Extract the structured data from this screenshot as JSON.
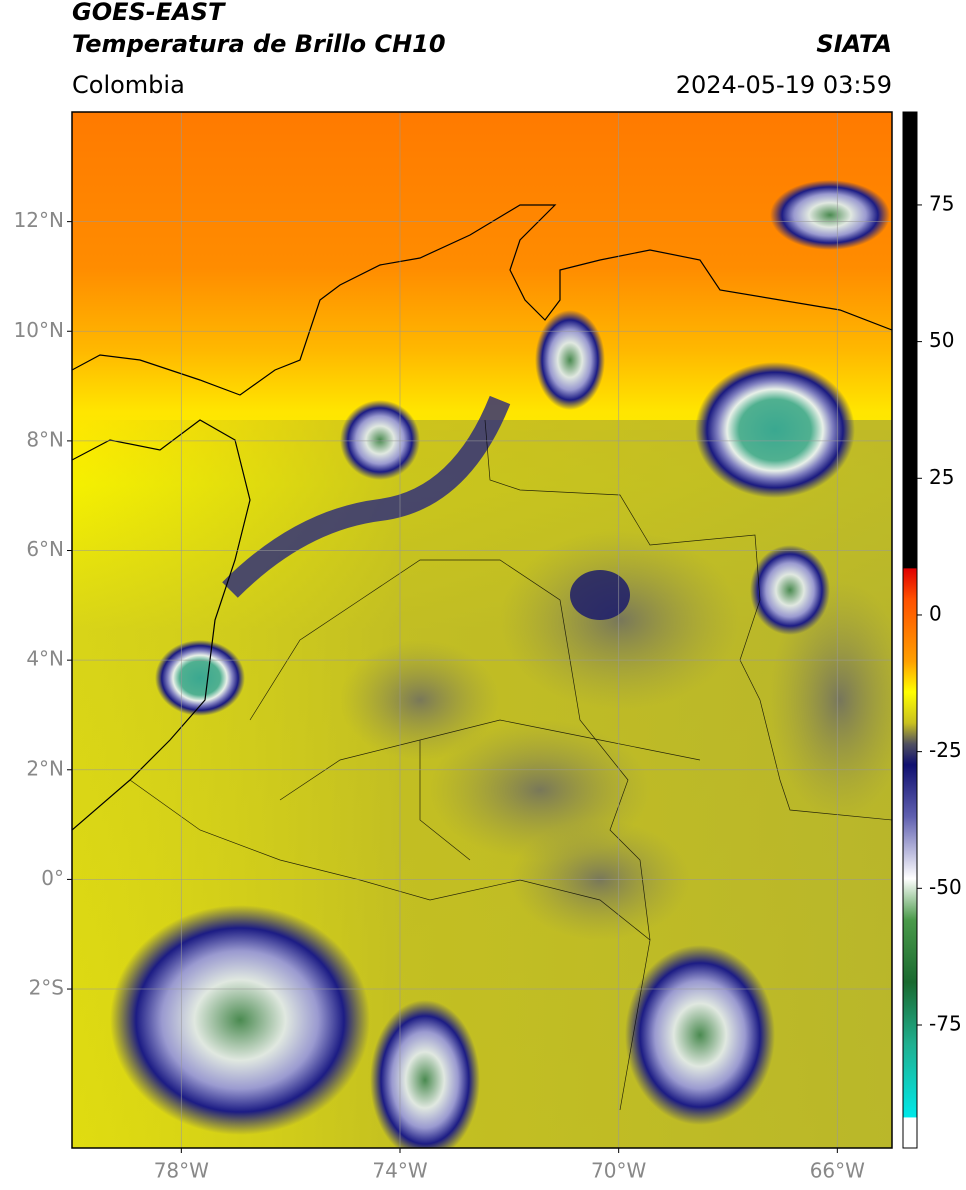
{
  "header": {
    "satellite": "GOES-EAST",
    "product": "Temperatura de Brillo CH10",
    "source": "SIATA",
    "region": "Colombia",
    "datetime": "2024-05-19 03:59"
  },
  "map": {
    "lonlim": [
      -80,
      -65
    ],
    "latlim": [
      -4.9,
      14
    ],
    "lat_ticks": [
      {
        "value": 12,
        "label": "12°N"
      },
      {
        "value": 10,
        "label": "10°N"
      },
      {
        "value": 8,
        "label": "8°N"
      },
      {
        "value": 6,
        "label": "6°N"
      },
      {
        "value": 4,
        "label": "4°N"
      },
      {
        "value": 2,
        "label": "2°N"
      },
      {
        "value": 0,
        "label": "0°"
      },
      {
        "value": -2,
        "label": "2°S"
      }
    ],
    "lon_ticks": [
      {
        "value": -78,
        "label": "78°W"
      },
      {
        "value": -74,
        "label": "74°W"
      },
      {
        "value": -70,
        "label": "70°W"
      },
      {
        "value": -66,
        "label": "66°W"
      }
    ]
  },
  "colorbar": {
    "lim": [
      -97.5,
      92
    ],
    "ticks": [
      75,
      50,
      25,
      0,
      -25,
      -50,
      -75
    ]
  }
}
